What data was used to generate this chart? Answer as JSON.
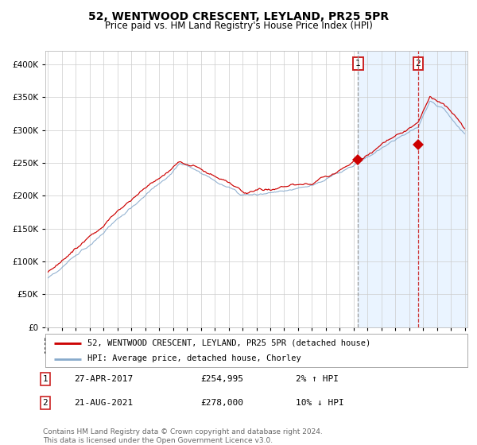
{
  "title": "52, WENTWOOD CRESCENT, LEYLAND, PR25 5PR",
  "subtitle": "Price paid vs. HM Land Registry's House Price Index (HPI)",
  "legend_line1": "52, WENTWOOD CRESCENT, LEYLAND, PR25 5PR (detached house)",
  "legend_line2": "HPI: Average price, detached house, Chorley",
  "annotation1_date": "27-APR-2017",
  "annotation1_price": "£254,995",
  "annotation1_hpi": "2% ↑ HPI",
  "annotation2_date": "21-AUG-2021",
  "annotation2_price": "£278,000",
  "annotation2_hpi": "10% ↓ HPI",
  "footer": "Contains HM Land Registry data © Crown copyright and database right 2024.\nThis data is licensed under the Open Government Licence v3.0.",
  "year_start": 1995,
  "year_end": 2025,
  "ylim_min": 0,
  "ylim_max": 420000,
  "yticks": [
    0,
    50000,
    100000,
    150000,
    200000,
    250000,
    300000,
    350000,
    400000
  ],
  "sale1_year": 2017.32,
  "sale1_value": 254995,
  "sale2_year": 2021.64,
  "sale2_value": 278000,
  "red_line_color": "#cc0000",
  "blue_line_color": "#88aacc",
  "bg_color": "#ffffff",
  "grid_color": "#cccccc",
  "shade_color": "#ddeeff",
  "vline1_color": "#999999",
  "vline2_color": "#cc3333"
}
